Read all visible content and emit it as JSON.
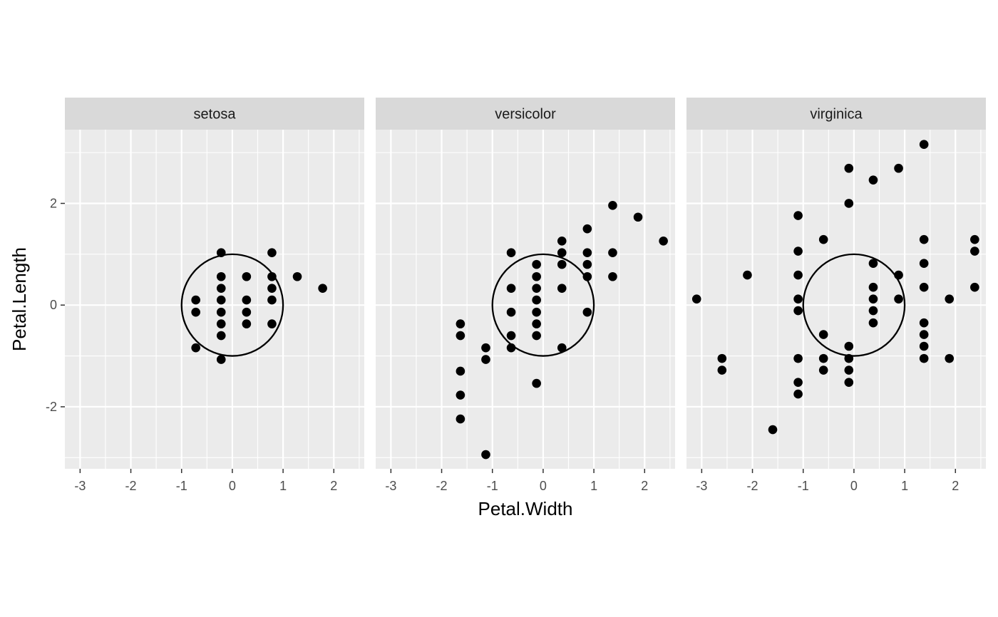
{
  "chart_data": {
    "type": "scatter",
    "xlabel": "Petal.Width",
    "ylabel": "Petal.Length",
    "xlim": [
      -3.3,
      2.6
    ],
    "ylim": [
      -3.22,
      3.45
    ],
    "x_ticks": [
      -3,
      -2,
      -1,
      0,
      1,
      2
    ],
    "y_ticks": [
      -2,
      0,
      2
    ],
    "grid": true,
    "annotation": "unit circle centered at (0, 0), radius 1, drawn in each panel",
    "colors": {
      "panel_background": "#ebebeb",
      "strip_background": "#d9d9d9",
      "grid": "#ffffff",
      "points": "#000000",
      "circle": "#000000",
      "tick_text": "#4d4d4d"
    },
    "facets": [
      {
        "label": "setosa",
        "points": [
          [
            -0.72,
            0.1
          ],
          [
            -0.72,
            -0.14
          ],
          [
            -0.72,
            -0.84
          ],
          [
            -0.22,
            1.03
          ],
          [
            -0.22,
            0.56
          ],
          [
            -0.22,
            0.33
          ],
          [
            -0.22,
            0.1
          ],
          [
            -0.22,
            -0.14
          ],
          [
            -0.22,
            -0.37
          ],
          [
            -0.22,
            -0.6
          ],
          [
            -0.22,
            -1.07
          ],
          [
            0.28,
            0.56
          ],
          [
            0.28,
            0.1
          ],
          [
            0.28,
            -0.14
          ],
          [
            0.28,
            -0.37
          ],
          [
            0.78,
            1.03
          ],
          [
            0.78,
            0.56
          ],
          [
            0.78,
            0.33
          ],
          [
            0.78,
            0.1
          ],
          [
            0.78,
            -0.37
          ],
          [
            1.28,
            0.56
          ],
          [
            1.78,
            0.33
          ]
        ]
      },
      {
        "label": "versicolor",
        "points": [
          [
            -1.63,
            -0.37
          ],
          [
            -1.63,
            -0.6
          ],
          [
            -1.63,
            -1.3
          ],
          [
            -1.63,
            -1.77
          ],
          [
            -1.63,
            -2.24
          ],
          [
            -1.13,
            -0.84
          ],
          [
            -1.13,
            -1.07
          ],
          [
            -1.13,
            -2.94
          ],
          [
            -0.63,
            1.03
          ],
          [
            -0.63,
            0.33
          ],
          [
            -0.63,
            -0.14
          ],
          [
            -0.63,
            -0.6
          ],
          [
            -0.63,
            -0.84
          ],
          [
            -0.13,
            0.8
          ],
          [
            -0.13,
            0.56
          ],
          [
            -0.13,
            0.33
          ],
          [
            -0.13,
            0.1
          ],
          [
            -0.13,
            -0.14
          ],
          [
            -0.13,
            -0.37
          ],
          [
            -0.13,
            -0.6
          ],
          [
            -0.13,
            -1.54
          ],
          [
            0.37,
            1.26
          ],
          [
            0.37,
            1.03
          ],
          [
            0.37,
            0.8
          ],
          [
            0.37,
            0.33
          ],
          [
            0.37,
            -0.84
          ],
          [
            0.87,
            1.5
          ],
          [
            0.87,
            1.03
          ],
          [
            0.87,
            0.8
          ],
          [
            0.87,
            0.56
          ],
          [
            0.87,
            -0.14
          ],
          [
            1.37,
            1.96
          ],
          [
            1.37,
            1.03
          ],
          [
            1.37,
            0.56
          ],
          [
            1.87,
            1.73
          ],
          [
            2.37,
            1.26
          ]
        ]
      },
      {
        "label": "virginica",
        "points": [
          [
            -3.1,
            0.12
          ],
          [
            -2.6,
            -1.05
          ],
          [
            -2.6,
            -1.28
          ],
          [
            -2.1,
            0.59
          ],
          [
            -1.6,
            -2.45
          ],
          [
            -1.1,
            1.76
          ],
          [
            -1.1,
            1.06
          ],
          [
            -1.1,
            0.59
          ],
          [
            -1.1,
            0.12
          ],
          [
            -1.1,
            -0.11
          ],
          [
            -1.1,
            -1.05
          ],
          [
            -1.1,
            -1.52
          ],
          [
            -1.1,
            -1.75
          ],
          [
            -0.6,
            1.29
          ],
          [
            -0.6,
            -0.58
          ],
          [
            -0.6,
            -1.05
          ],
          [
            -0.6,
            -1.28
          ],
          [
            -0.1,
            2.69
          ],
          [
            -0.1,
            2.0
          ],
          [
            -0.1,
            -0.81
          ],
          [
            -0.1,
            -1.05
          ],
          [
            -0.1,
            -1.28
          ],
          [
            -0.1,
            -1.52
          ],
          [
            0.38,
            2.46
          ],
          [
            0.38,
            0.82
          ],
          [
            0.38,
            0.35
          ],
          [
            0.38,
            0.12
          ],
          [
            0.38,
            -0.11
          ],
          [
            0.38,
            -0.35
          ],
          [
            0.88,
            2.69
          ],
          [
            0.88,
            0.59
          ],
          [
            0.88,
            0.12
          ],
          [
            1.38,
            3.16
          ],
          [
            1.38,
            1.29
          ],
          [
            1.38,
            0.82
          ],
          [
            1.38,
            0.35
          ],
          [
            1.38,
            -0.35
          ],
          [
            1.38,
            -0.58
          ],
          [
            1.38,
            -0.81
          ],
          [
            1.38,
            -1.05
          ],
          [
            1.88,
            0.12
          ],
          [
            1.88,
            -1.05
          ],
          [
            2.38,
            1.29
          ],
          [
            2.38,
            1.06
          ],
          [
            2.38,
            0.35
          ]
        ]
      }
    ]
  }
}
